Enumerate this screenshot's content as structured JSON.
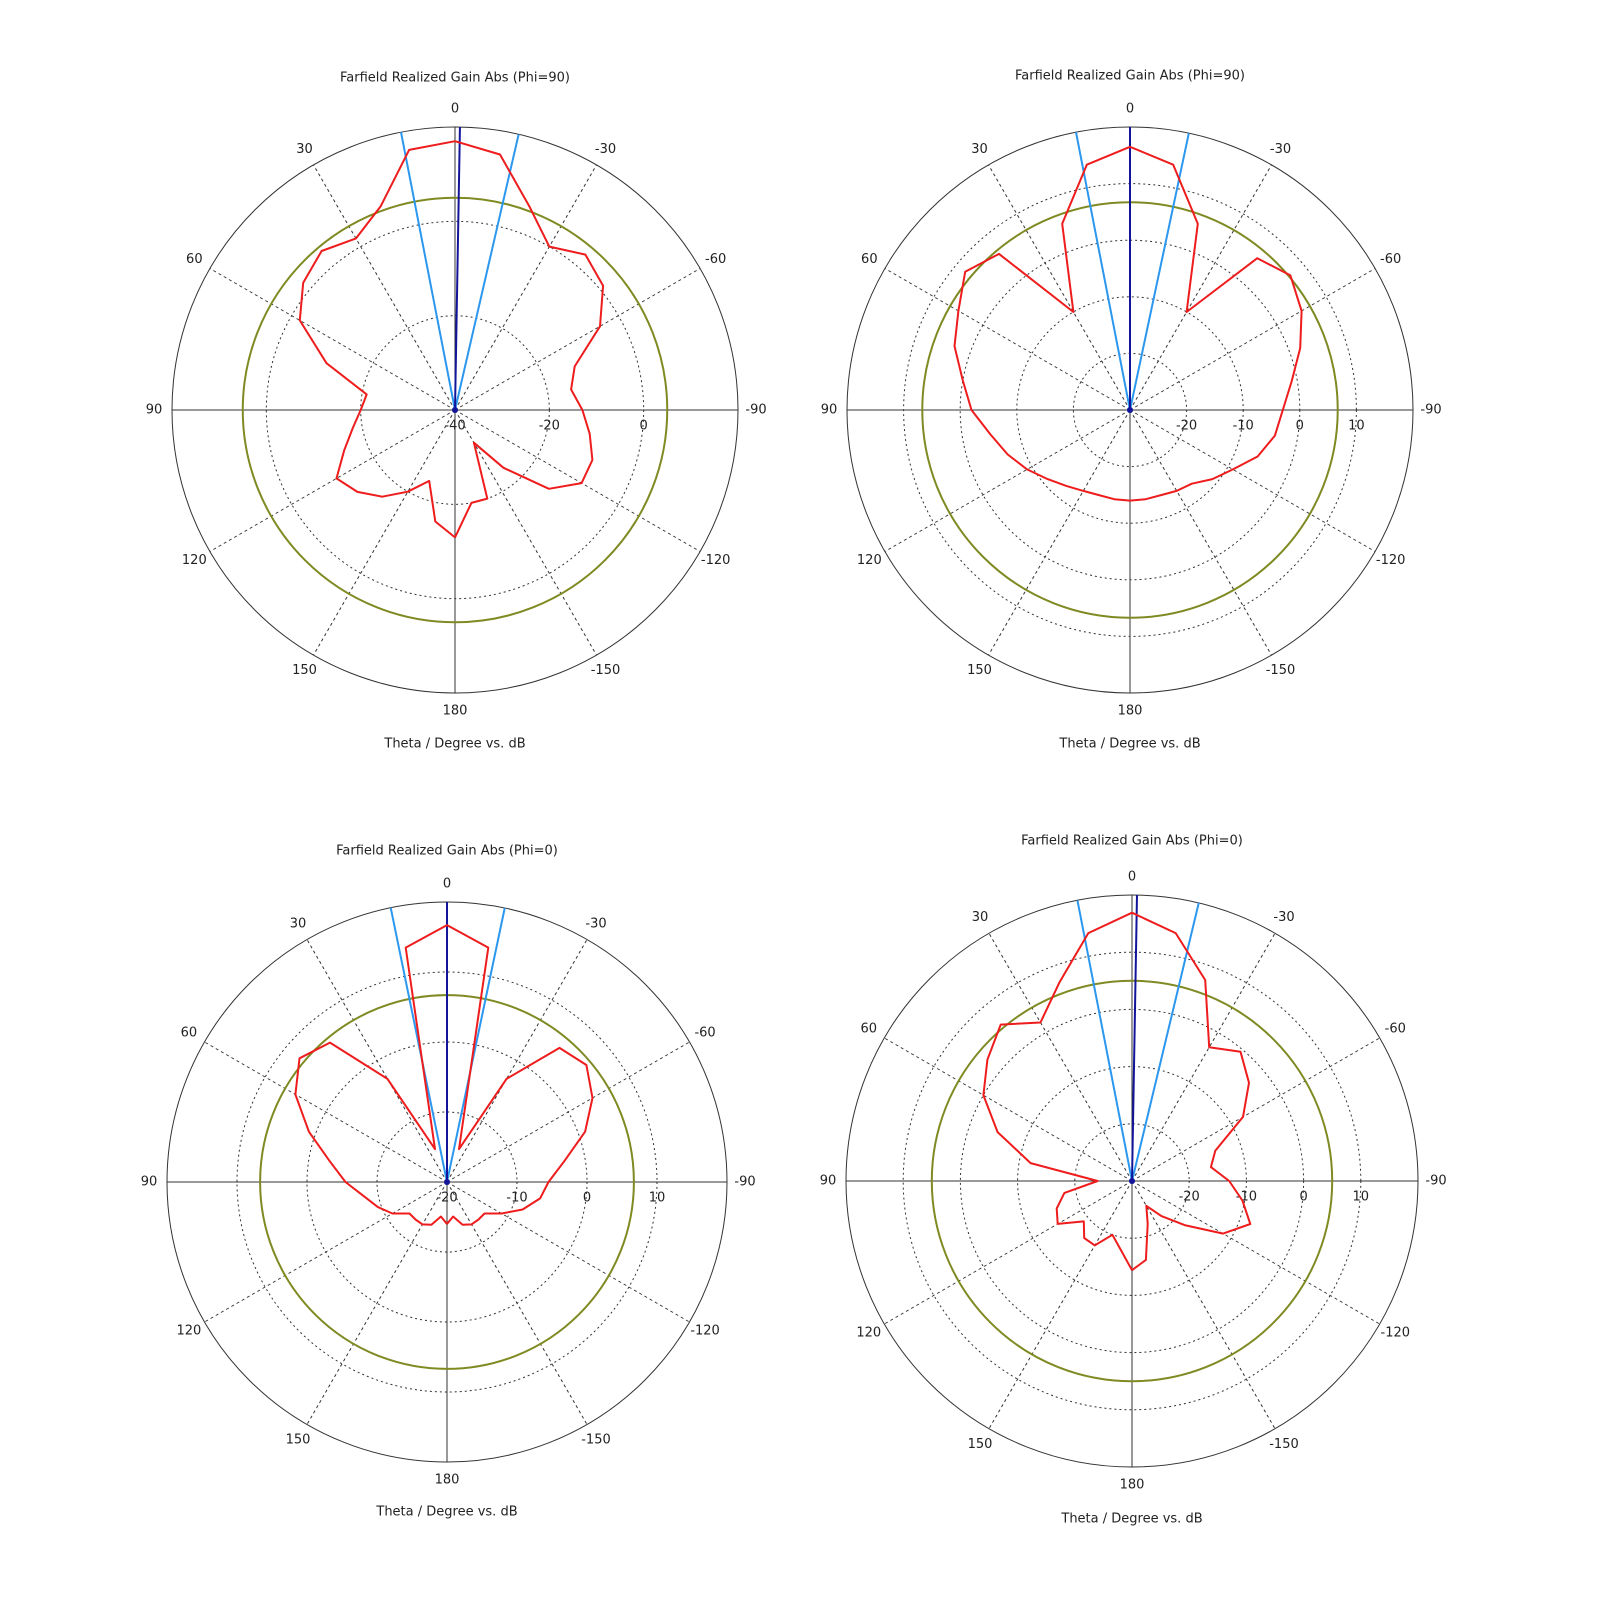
{
  "chart_data": [
    {
      "type": "polar",
      "title": "Farfield Realized Gain Abs (Phi=90)",
      "axis_label": "Theta / Degree vs. dB",
      "rlim": [
        -40,
        20
      ],
      "rticks": [
        -40,
        -20,
        0
      ],
      "theta_ticks": [
        0,
        30,
        60,
        90,
        120,
        150,
        180,
        -150,
        -120,
        -90,
        -60,
        -30
      ],
      "x": [
        -180,
        -170,
        -160,
        -150,
        -140,
        -130,
        -120,
        -110,
        -100,
        -90,
        -80,
        -70,
        -60,
        -50,
        -40,
        -30,
        -20,
        -10,
        0,
        10,
        20,
        30,
        40,
        50,
        60,
        70,
        80,
        90,
        100,
        110,
        120,
        130,
        140,
        150,
        160,
        170,
        180
      ],
      "values": [
        -13,
        -20,
        -20,
        -32,
        -24,
        -14,
        -9,
        -9,
        -11,
        -13,
        -15,
        -13,
        -4.5,
        1,
        3,
        0,
        6,
        15,
        17,
        16,
        6,
        2,
        4,
        2,
        -2,
        -11,
        -21,
        -20,
        -18,
        -15,
        -11,
        -13,
        -16,
        -20,
        -24,
        -16,
        -13
      ],
      "color": "#ee1c1c",
      "main_lobe_direction": -1,
      "beam_edges": [
        11,
        -13
      ],
      "level_circle": 5,
      "main_lobe_color": "#12149a",
      "beam_color": "#2b97ee",
      "level_color": "#7f8a22"
    },
    {
      "type": "polar",
      "title": "Farfield Realized Gain Abs (Phi=90)",
      "axis_label": "Theta / Degree vs. dB",
      "rlim": [
        -30,
        20
      ],
      "rticks": [
        -20,
        -10,
        0,
        10
      ],
      "theta_ticks": [
        0,
        30,
        60,
        90,
        120,
        150,
        180,
        -150,
        -120,
        -90,
        -60,
        -30
      ],
      "x": [
        -180,
        -170,
        -160,
        -150,
        -140,
        -130,
        -120,
        -110,
        -100,
        -90,
        -80,
        -70,
        -60,
        -50,
        -40,
        -30,
        -20,
        -10,
        0,
        10,
        20,
        30,
        40,
        50,
        60,
        70,
        80,
        90,
        100,
        110,
        120,
        130,
        140,
        150,
        160,
        170,
        180
      ],
      "values": [
        -14,
        -14,
        -14,
        -13.5,
        -13,
        -11,
        -9,
        -6,
        -4,
        -3,
        -1,
        2,
        5,
        7,
        5,
        -10,
        5,
        14,
        16.5,
        14,
        5,
        -10,
        6,
        8,
        5,
        3,
        0,
        -2,
        -5,
        -7,
        -9,
        -11,
        -12.5,
        -13.5,
        -14,
        -14,
        -14
      ],
      "color": "#ee1c1c",
      "main_lobe_direction": 0,
      "beam_edges": [
        11,
        -12
      ],
      "level_circle": 6.7,
      "main_lobe_color": "#12149a",
      "beam_color": "#2b97ee",
      "level_color": "#7f8a22"
    },
    {
      "type": "polar",
      "title": "Farfield Realized Gain Abs (Phi=0)",
      "axis_label": "Theta / Degree vs. dB",
      "rlim": [
        -20,
        20
      ],
      "rticks": [
        -20,
        -10,
        0,
        10
      ],
      "theta_ticks": [
        0,
        30,
        60,
        90,
        120,
        150,
        180,
        -150,
        -120,
        -90,
        -60,
        -30
      ],
      "x": [
        -180,
        -170,
        -160,
        -150,
        -140,
        -130,
        -120,
        -110,
        -100,
        -90,
        -80,
        -70,
        -60,
        -50,
        -40,
        -30,
        -20,
        -10,
        0,
        10,
        20,
        30,
        40,
        50,
        60,
        70,
        80,
        90,
        100,
        110,
        120,
        130,
        140,
        150,
        160,
        170,
        180
      ],
      "values": [
        -14,
        -15,
        -13.5,
        -13,
        -13,
        -13,
        -11,
        -8.5,
        -6.5,
        -5.5,
        -3,
        1,
        4,
        6,
        5,
        -3,
        -15,
        14,
        16.7,
        14,
        -15,
        -3,
        6,
        7.5,
        5,
        1,
        -3,
        -5.5,
        -8,
        -9.5,
        -11,
        -13,
        -13,
        -13,
        -13.5,
        -15,
        -14
      ],
      "color": "#ee1c1c",
      "main_lobe_direction": 0,
      "beam_edges": [
        11.6,
        -11.9
      ],
      "level_circle": 6.7,
      "main_lobe_color": "#12149a",
      "beam_color": "#2b97ee",
      "level_color": "#7f8a22"
    },
    {
      "type": "polar",
      "title": "Farfield Realized Gain Abs (Phi=0)",
      "axis_label": "Theta / Degree vs. dB",
      "rlim": [
        -30,
        20
      ],
      "rticks": [
        -20,
        -10,
        0,
        10
      ],
      "theta_ticks": [
        0,
        30,
        60,
        90,
        120,
        150,
        180,
        -150,
        -120,
        -90,
        -60,
        -30
      ],
      "x": [
        -180,
        -170,
        -160,
        -150,
        -140,
        -130,
        -120,
        -110,
        -100,
        -90,
        -80,
        -70,
        -60,
        -50,
        -40,
        -30,
        -20,
        -10,
        0,
        10,
        20,
        30,
        40,
        50,
        60,
        70,
        80,
        90,
        100,
        110,
        120,
        130,
        140,
        150,
        160,
        170,
        180
      ],
      "values": [
        -14.4,
        -16,
        -22,
        -25,
        -22,
        -18,
        -11.6,
        -8,
        -10.4,
        -13,
        -16,
        -14.5,
        -7.6,
        -3.3,
        -0.5,
        -3,
        7.4,
        14,
        16.9,
        14,
        7,
        2,
        5.7,
        3,
        0,
        -5,
        -12,
        -24,
        -18,
        -16,
        -15,
        -19,
        -17,
        -17,
        -20,
        -18,
        -14.4
      ],
      "color": "#ee1c1c",
      "main_lobe_direction": -1,
      "beam_edges": [
        11,
        -13.5
      ],
      "level_circle": 5,
      "main_lobe_color": "#12149a",
      "beam_color": "#2b97ee",
      "level_color": "#7f8a22"
    }
  ]
}
